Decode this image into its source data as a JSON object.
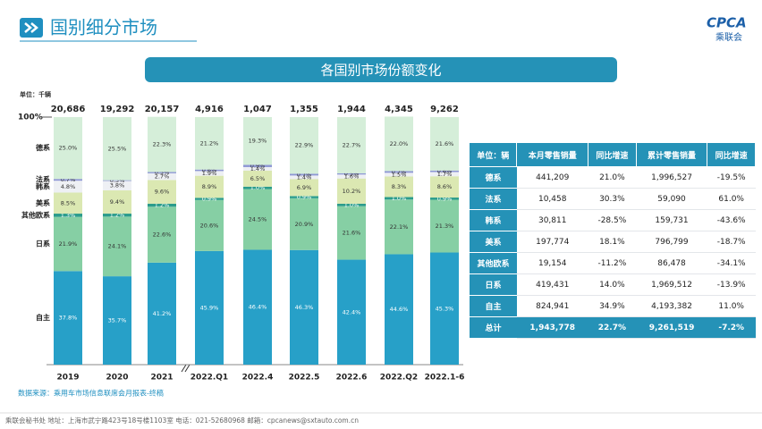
{
  "header": {
    "title": "国别细分市场",
    "logo": "CPCA",
    "logo_sub": "乘联会"
  },
  "chart_data": {
    "type": "bar",
    "stacked": true,
    "title": "各国别市场份额变化",
    "unit": "单位：千辆",
    "categories": [
      "2019",
      "2020",
      "2021",
      "2022.Q1",
      "2022.4",
      "2022.5",
      "2022.6",
      "2022.Q2",
      "2022.1-6"
    ],
    "ylim": [
      0,
      100
    ],
    "yticks": [
      {
        "value": 100,
        "label": "100%"
      }
    ],
    "totals": {
      "values": [
        20686,
        19292,
        20157,
        4916,
        1047,
        1355,
        1944,
        4345,
        9262
      ],
      "value_labels": [
        "20,686",
        "19,292",
        "20,157",
        "4,916",
        "1,047",
        "1,355",
        "1,944",
        "4,345",
        "9,262"
      ]
    },
    "series": [
      {
        "name": "自主",
        "color": "#27a0c8",
        "values": [
          37.8,
          35.7,
          41.2,
          45.9,
          46.4,
          46.3,
          42.4,
          44.6,
          45.3
        ],
        "value_labels": [
          "37.8%",
          "35.7%",
          "41.2%",
          "45.9%",
          "46.4%",
          "46.3%",
          "42.4%",
          "44.6%",
          "45.3%"
        ]
      },
      {
        "name": "日系",
        "color": "#86cfa4",
        "values": [
          21.9,
          24.1,
          22.6,
          20.6,
          24.5,
          20.9,
          21.6,
          22.1,
          21.3
        ],
        "value_labels": [
          "21.9%",
          "24.1%",
          "22.6%",
          "20.6%",
          "24.5%",
          "20.9%",
          "21.6%",
          "22.1%",
          "21.3%"
        ]
      },
      {
        "name": "其他欧系",
        "color": "#2b9c8c",
        "values": [
          1.3,
          1.2,
          1.2,
          0.9,
          1.0,
          0.9,
          1.0,
          1.0,
          0.9
        ],
        "value_labels": [
          "1.3%",
          "1.2%",
          "1.2%",
          "0.9%",
          "1.0%",
          "0.9%",
          "1.0%",
          "1.0%",
          "0.9%"
        ]
      },
      {
        "name": "美系",
        "color": "#dbe8b2",
        "values": [
          8.5,
          9.4,
          9.6,
          8.9,
          6.5,
          6.9,
          10.2,
          8.3,
          8.6
        ],
        "value_labels": [
          "8.5%",
          "9.4%",
          "9.6%",
          "8.9%",
          "6.5%",
          "6.9%",
          "10.2%",
          "8.3%",
          "8.6%"
        ]
      },
      {
        "name": "韩系",
        "color": "#eef0f4",
        "values": [
          4.8,
          3.8,
          2.7,
          1.9,
          1.4,
          1.4,
          1.6,
          1.5,
          1.7
        ],
        "value_labels": [
          "4.8%",
          "3.8%",
          "2.7%",
          "1.9%",
          "1.4%",
          "1.4%",
          "1.6%",
          "1.5%",
          "1.7%"
        ]
      },
      {
        "name": "法系",
        "color": "#8e97d4",
        "values": [
          0.7,
          0.3,
          0.5,
          0.6,
          0.9,
          0.7,
          0.5,
          0.7,
          0.6
        ],
        "value_labels": [
          "0.7%",
          "0.3%",
          "0.5%",
          "0.6%",
          "0.9%",
          "0.7%",
          "0.5%",
          "0.7%",
          "0.6%"
        ]
      },
      {
        "name": "德系",
        "color": "#d5eed9",
        "values": [
          25.0,
          25.5,
          22.3,
          21.2,
          19.3,
          22.9,
          22.7,
          22.0,
          21.6
        ],
        "value_labels": [
          "25.0%",
          "25.5%",
          "22.3%",
          "21.2%",
          "19.3%",
          "22.9%",
          "22.7%",
          "22.0%",
          "21.6%"
        ]
      }
    ],
    "source": "数据来源：乘用车市场信息联席会月报表-终稿"
  },
  "table": {
    "header": [
      "单位：辆",
      "本月零售销量",
      "同比增速",
      "累计零售销量",
      "同比增速"
    ],
    "rows": [
      [
        "德系",
        "441,209",
        "21.0%",
        "1,996,527",
        "-19.5%"
      ],
      [
        "法系",
        "10,458",
        "30.3%",
        "59,090",
        "61.0%"
      ],
      [
        "韩系",
        "30,811",
        "-28.5%",
        "159,731",
        "-43.6%"
      ],
      [
        "美系",
        "197,774",
        "18.1%",
        "796,799",
        "-18.7%"
      ],
      [
        "其他欧系",
        "19,154",
        "-11.2%",
        "86,478",
        "-34.1%"
      ],
      [
        "日系",
        "419,431",
        "14.0%",
        "1,969,512",
        "-13.9%"
      ],
      [
        "自主",
        "824,941",
        "34.9%",
        "4,193,382",
        "11.0%"
      ],
      [
        "总计",
        "1,943,778",
        "22.7%",
        "9,261,519",
        "-7.2%"
      ]
    ]
  },
  "footer": "乘联会秘书处  地址：上海市武宁路423号18号楼1103室  电话：021-52680968  邮箱：cpcanews@sxtauto.com.cn"
}
